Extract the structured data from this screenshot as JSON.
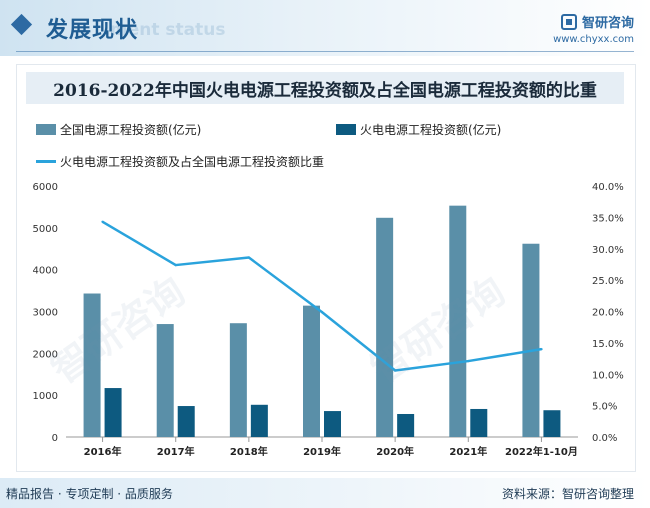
{
  "header": {
    "title": "发展现状",
    "ghost": "ment status",
    "brand_name": "智研咨询",
    "brand_url": "www.chyxx.com"
  },
  "chart_data": {
    "type": "bar",
    "title": "2016-2022年中国火电电源工程投资额及占全国电源工程投资额的比重",
    "categories": [
      "2016年",
      "2017年",
      "2018年",
      "2019年",
      "2020年",
      "2021年",
      "2022年1-10月"
    ],
    "series": [
      {
        "name": "全国电源工程投资额(亿元)",
        "type": "bar",
        "axis": "left",
        "color": "#5a8fa8",
        "values": [
          3430,
          2700,
          2720,
          3140,
          5240,
          5530,
          4620
        ]
      },
      {
        "name": "火电电源工程投资额(亿元)",
        "type": "bar",
        "axis": "left",
        "color": "#0d5a80",
        "values": [
          1170,
          740,
          770,
          620,
          550,
          670,
          640
        ]
      },
      {
        "name": "火电电源工程投资额及占全国电源工程投资额比重",
        "type": "line",
        "axis": "right",
        "color": "#2aa3dc",
        "values": [
          34.3,
          27.4,
          28.6,
          19.9,
          10.6,
          12.1,
          14.0
        ]
      }
    ],
    "y_left": {
      "min": 0,
      "max": 6000,
      "ticks": [
        "0",
        "1000",
        "2000",
        "3000",
        "4000",
        "5000",
        "6000"
      ]
    },
    "y_right": {
      "min": 0,
      "max": 40,
      "ticks": [
        "0.0%",
        "5.0%",
        "10.0%",
        "15.0%",
        "20.0%",
        "25.0%",
        "30.0%",
        "35.0%",
        "40.0%"
      ]
    },
    "grid": false,
    "legend": "top-left"
  },
  "footer": {
    "left": "精品报告 · 专项定制 · 品质服务",
    "right": "资料来源：智研咨询整理"
  }
}
